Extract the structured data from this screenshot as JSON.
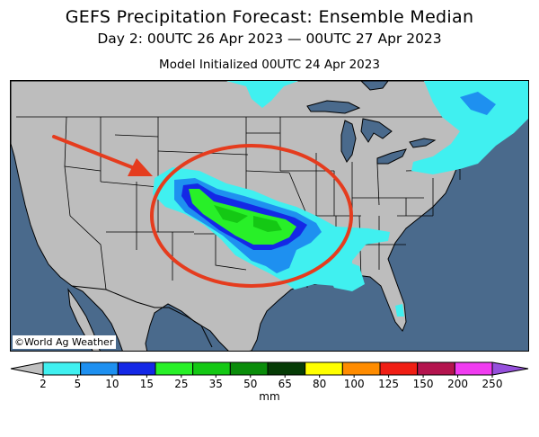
{
  "header": {
    "title": "GEFS Precipitation Forecast: Ensemble Median",
    "subtitle": "Day 2: 00UTC 26 Apr 2023 — 00UTC 27 Apr 2023",
    "initialized": "Model Initialized 00UTC 24 Apr 2023"
  },
  "map": {
    "credit": "©World Ag Weather",
    "colors": {
      "ocean": "#4a6a8c",
      "land": "#bdbdbd",
      "borders": "#000000",
      "highlight_circle": "#e53c1e",
      "arrow": "#e53c1e"
    },
    "annotation_icons": [
      "highlight-circle-icon",
      "arrow-icon"
    ]
  },
  "legend": {
    "units": "mm",
    "tick_labels": [
      "2",
      "5",
      "10",
      "15",
      "25",
      "35",
      "50",
      "65",
      "80",
      "100",
      "125",
      "150",
      "200",
      "250"
    ],
    "colors": [
      "#c0c0c0",
      "#40f0f0",
      "#1e90f0",
      "#1428e6",
      "#28f028",
      "#14c814",
      "#0a8c0a",
      "#063c06",
      "#ffff00",
      "#ff8c00",
      "#f01e14",
      "#b4144e",
      "#f03cf0",
      "#9650dc"
    ]
  }
}
